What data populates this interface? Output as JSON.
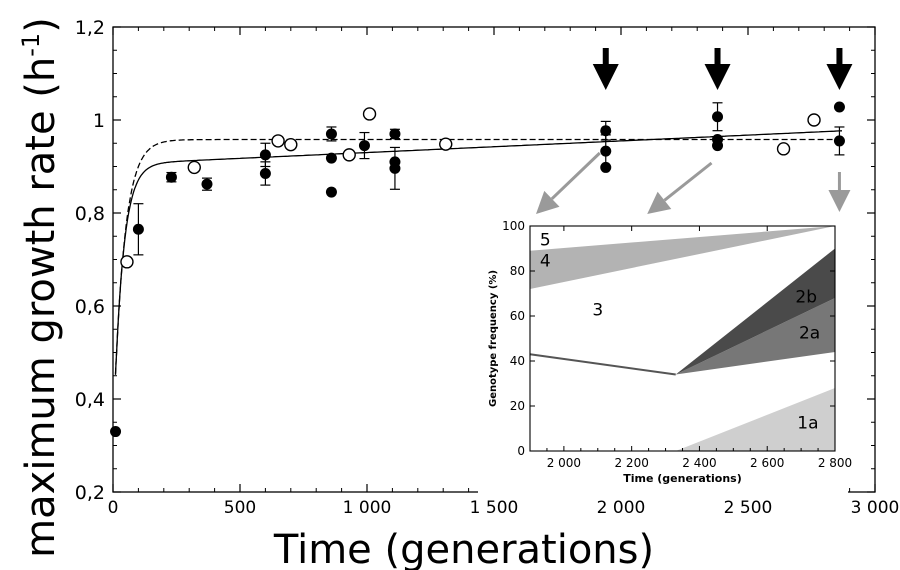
{
  "chart_data": [
    {
      "type": "scatter",
      "xlabel": "Time (generations)",
      "ylabel": "maximum growth rate (h",
      "ylabel_sup": "-1",
      "ylabel_close": ")",
      "xlim": [
        0,
        3000
      ],
      "ylim": [
        0.2,
        1.2
      ],
      "xticks": [
        0,
        500,
        1000,
        1500,
        2000,
        2500,
        3000
      ],
      "xtick_labels": [
        "0",
        "500",
        "1 000",
        "1 500",
        "2 000",
        "2 500",
        "3 000"
      ],
      "yticks": [
        0.2,
        0.4,
        0.6,
        0.8,
        1.0,
        1.2
      ],
      "ytick_labels": [
        "0,2",
        "0,4",
        "0,6",
        "0,8",
        "1",
        "1,2"
      ],
      "series": [
        {
          "marker": "filled-circle",
          "points": [
            {
              "x": 10,
              "y": 0.33
            },
            {
              "x": 100,
              "y": 0.765,
              "err": 0.055
            },
            {
              "x": 230,
              "y": 0.877,
              "err": 0.01
            },
            {
              "x": 370,
              "y": 0.862,
              "err": 0.013
            },
            {
              "x": 600,
              "y": 0.925,
              "err": 0.025
            },
            {
              "x": 600,
              "y": 0.885,
              "err": 0.025
            },
            {
              "x": 860,
              "y": 0.97,
              "err": 0.015
            },
            {
              "x": 860,
              "y": 0.918
            },
            {
              "x": 860,
              "y": 0.845
            },
            {
              "x": 990,
              "y": 0.945,
              "err": 0.028
            },
            {
              "x": 1110,
              "y": 0.97,
              "err": 0.01
            },
            {
              "x": 1110,
              "y": 0.91
            },
            {
              "x": 1110,
              "y": 0.896,
              "err": 0.045
            },
            {
              "x": 1940,
              "y": 0.977,
              "err": 0.02
            },
            {
              "x": 1940,
              "y": 0.933,
              "err": 0.035
            },
            {
              "x": 1940,
              "y": 0.898
            },
            {
              "x": 2380,
              "y": 1.007,
              "err": 0.03
            },
            {
              "x": 2380,
              "y": 0.958
            },
            {
              "x": 2380,
              "y": 0.945
            },
            {
              "x": 2860,
              "y": 1.028
            },
            {
              "x": 2860,
              "y": 0.955,
              "err": 0.03
            }
          ]
        },
        {
          "marker": "open-circle",
          "points": [
            {
              "x": 55,
              "y": 0.695
            },
            {
              "x": 320,
              "y": 0.898
            },
            {
              "x": 650,
              "y": 0.955
            },
            {
              "x": 700,
              "y": 0.947
            },
            {
              "x": 930,
              "y": 0.925
            },
            {
              "x": 1010,
              "y": 1.013
            },
            {
              "x": 1310,
              "y": 0.948
            },
            {
              "x": 2640,
              "y": 0.938
            },
            {
              "x": 2760,
              "y": 1.0
            }
          ]
        }
      ],
      "fit_curves": [
        {
          "style": "solid",
          "plateau": 0.905,
          "slope": 2.5e-05,
          "rise": 0.6,
          "k": 0.028
        },
        {
          "style": "dashed",
          "plateau": 0.958,
          "slope": 0.0,
          "rise": 0.64,
          "k": 0.024
        }
      ],
      "arrows_at_x": [
        1940,
        2380,
        2860
      ]
    },
    {
      "type": "area",
      "xlabel": "Time (generations)",
      "ylabel": "Genotype frequency (%)",
      "xlim": [
        1900,
        2800
      ],
      "ylim": [
        0,
        100
      ],
      "xticks": [
        2000,
        2200,
        2400,
        2600,
        2800
      ],
      "xtick_labels": [
        "2 000",
        "2 200",
        "2 400",
        "2 600",
        "2 800"
      ],
      "yticks": [
        0,
        20,
        40,
        60,
        80,
        100
      ],
      "ytick_labels": [
        "0",
        "20",
        "40",
        "60",
        "80",
        "100"
      ],
      "regions": [
        {
          "label": "1a",
          "color": "#cfcfcf",
          "polygon": [
            [
              2330,
              0
            ],
            [
              2800,
              0
            ],
            [
              2800,
              28
            ]
          ],
          "label_at": [
            2720,
            10
          ]
        },
        {
          "label": "2a",
          "color": "#777777",
          "polygon": [
            [
              2330,
              34
            ],
            [
              2800,
              44
            ],
            [
              2800,
              68
            ]
          ],
          "label_at": [
            2725,
            50
          ]
        },
        {
          "label": "2b",
          "color": "#4a4a4a",
          "polygon": [
            [
              2330,
              34
            ],
            [
              2800,
              68
            ],
            [
              2800,
              90
            ]
          ],
          "label_at": [
            2715,
            66
          ]
        },
        {
          "label": "4",
          "color": "#b3b3b3",
          "polygon": [
            [
              1900,
              72
            ],
            [
              1900,
              89
            ],
            [
              2800,
              100
            ]
          ],
          "label_at": [
            1945,
            82
          ]
        }
      ],
      "text_labels": [
        {
          "label": "3",
          "at": [
            2100,
            63
          ]
        },
        {
          "label": "5",
          "at": [
            1945,
            94
          ]
        }
      ],
      "boundary_line": [
        [
          1900,
          43
        ],
        [
          2330,
          34
        ]
      ]
    }
  ]
}
